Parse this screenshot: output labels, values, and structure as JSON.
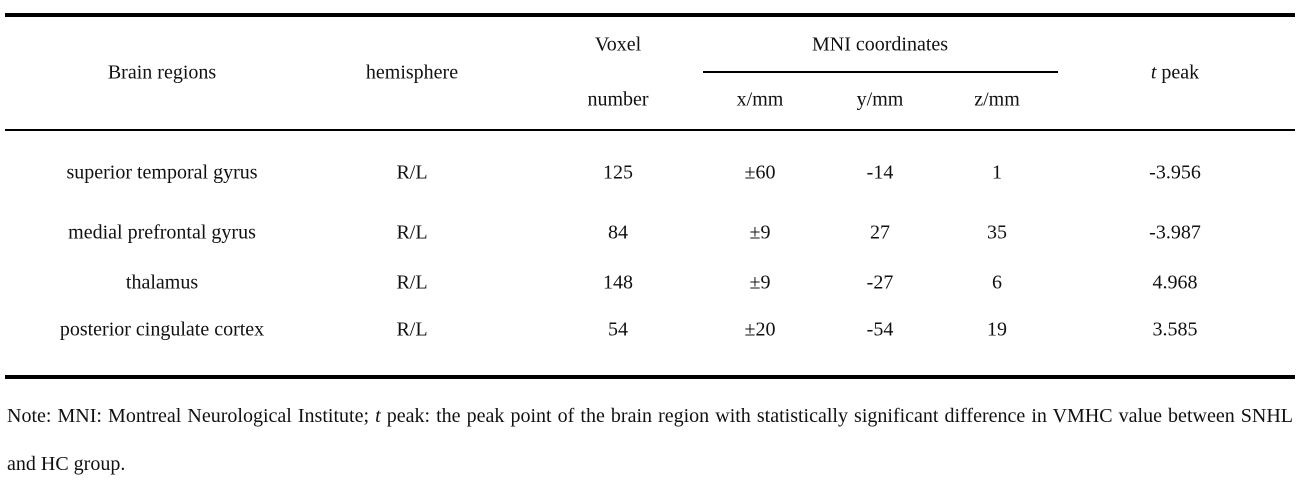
{
  "header": {
    "brain_regions": "Brain regions",
    "hemisphere": "hemisphere",
    "voxel": "Voxel",
    "number": "number",
    "mni": "MNI coordinates",
    "x": "x/mm",
    "y": "y/mm",
    "z": "z/mm",
    "t_peak": [
      "t",
      "peak"
    ]
  },
  "table": {
    "rows": [
      [
        "superior temporal gyrus",
        "R/L",
        "125",
        "±60",
        "-14",
        "1",
        "-3.956"
      ],
      [
        "medial prefrontal gyrus",
        "R/L",
        "84",
        "±9",
        "27",
        "35",
        "-3.987"
      ],
      [
        "thalamus",
        "R/L",
        "148",
        "±9",
        "-27",
        "6",
        "4.968"
      ],
      [
        "posterior cingulate cortex",
        "R/L",
        "54",
        "±20",
        "-54",
        "19",
        "3.585"
      ]
    ]
  },
  "note": [
    "Note: MNI: Montreal Neurological Institute;",
    "t",
    "peak: the peak point of the brain region with statistically significant difference in VMHC value between SNHL and HC group."
  ]
}
